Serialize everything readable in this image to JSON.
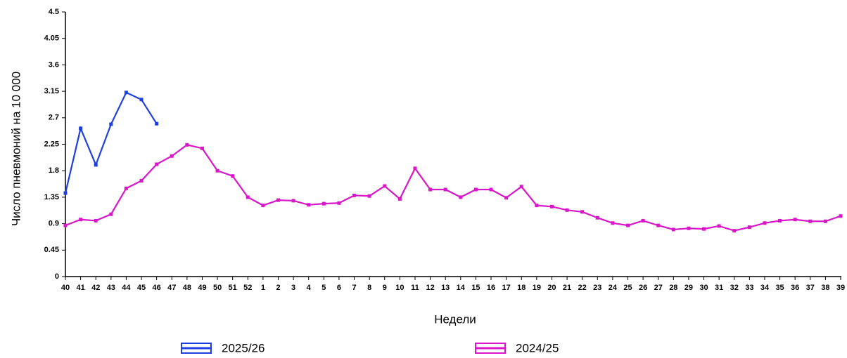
{
  "chart_data": {
    "type": "line",
    "y_label": "Число пневмоний на 10 000",
    "x_label": "Недели",
    "categories": [
      "40",
      "41",
      "42",
      "43",
      "44",
      "45",
      "46",
      "47",
      "48",
      "49",
      "50",
      "51",
      "52",
      "1",
      "2",
      "3",
      "4",
      "5",
      "6",
      "7",
      "8",
      "9",
      "10",
      "11",
      "12",
      "13",
      "14",
      "15",
      "16",
      "17",
      "18",
      "19",
      "20",
      "21",
      "22",
      "23",
      "24",
      "25",
      "26",
      "27",
      "28",
      "29",
      "30",
      "31",
      "32",
      "33",
      "34",
      "35",
      "36",
      "37",
      "38",
      "39"
    ],
    "ylim": [
      0,
      4.5
    ],
    "yticks": [
      0,
      0.45,
      0.9,
      1.35,
      1.8,
      2.25,
      2.7,
      3.15,
      3.6,
      4.05,
      4.5
    ],
    "series": [
      {
        "name": "2025/26",
        "color": "#1f3fe0",
        "values": [
          1.42,
          2.52,
          1.9,
          2.59,
          3.13,
          3.01,
          2.6,
          null,
          null,
          null,
          null,
          null,
          null,
          null,
          null,
          null,
          null,
          null,
          null,
          null,
          null,
          null,
          null,
          null,
          null,
          null,
          null,
          null,
          null,
          null,
          null,
          null,
          null,
          null,
          null,
          null,
          null,
          null,
          null,
          null,
          null,
          null,
          null,
          null,
          null,
          null,
          null,
          null,
          null,
          null,
          null,
          null
        ]
      },
      {
        "name": "2024/25",
        "color": "#d916c8",
        "values": [
          0.87,
          0.97,
          0.95,
          1.06,
          1.5,
          1.63,
          1.91,
          2.05,
          2.24,
          2.18,
          1.8,
          1.71,
          1.35,
          1.21,
          1.3,
          1.29,
          1.22,
          1.24,
          1.25,
          1.38,
          1.37,
          1.54,
          1.32,
          1.84,
          1.48,
          1.48,
          1.35,
          1.48,
          1.48,
          1.34,
          1.53,
          1.21,
          1.19,
          1.13,
          1.1,
          1.0,
          0.91,
          0.87,
          0.95,
          0.87,
          0.8,
          0.82,
          0.81,
          0.86,
          0.78,
          0.84,
          0.91,
          0.95,
          0.97,
          0.94,
          0.94,
          1.03
        ]
      }
    ]
  }
}
